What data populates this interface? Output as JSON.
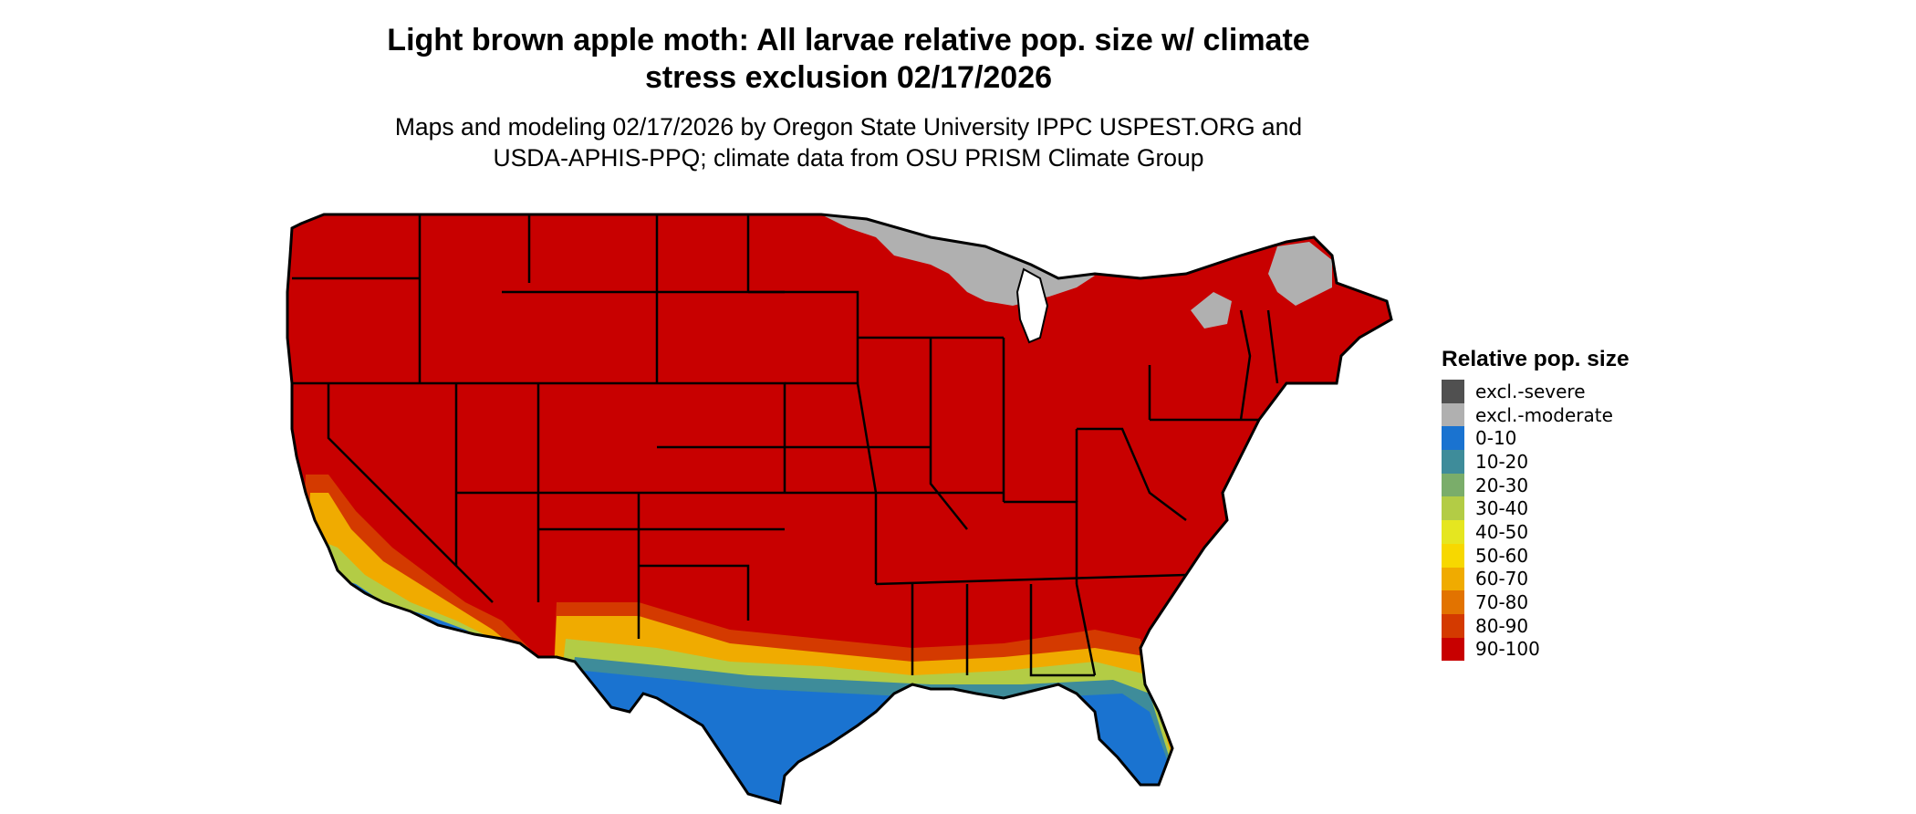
{
  "title_line1": "Light brown apple moth: All larvae relative pop. size w/ climate",
  "title_line2": "stress exclusion 02/17/2026",
  "subtitle_line1": "Maps and modeling 02/17/2026 by Oregon State University IPPC USPEST.ORG and",
  "subtitle_line2": "USDA-APHIS-PPQ; climate data from OSU PRISM Climate Group",
  "legend": {
    "title": "Relative pop. size",
    "items": [
      {
        "label": "excl.-severe",
        "color": "#505050"
      },
      {
        "label": "excl.-moderate",
        "color": "#b0b0b0"
      },
      {
        "label": "0-10",
        "color": "#1a73d0"
      },
      {
        "label": "10-20",
        "color": "#3e8c9a"
      },
      {
        "label": "20-30",
        "color": "#7aad6a"
      },
      {
        "label": "30-40",
        "color": "#b3cc45"
      },
      {
        "label": "40-50",
        "color": "#e5e620"
      },
      {
        "label": "50-60",
        "color": "#f7d800"
      },
      {
        "label": "60-70",
        "color": "#f0ab00"
      },
      {
        "label": "70-80",
        "color": "#e27300"
      },
      {
        "label": "80-90",
        "color": "#d43a00"
      },
      {
        "label": "90-100",
        "color": "#c80000"
      }
    ]
  }
}
